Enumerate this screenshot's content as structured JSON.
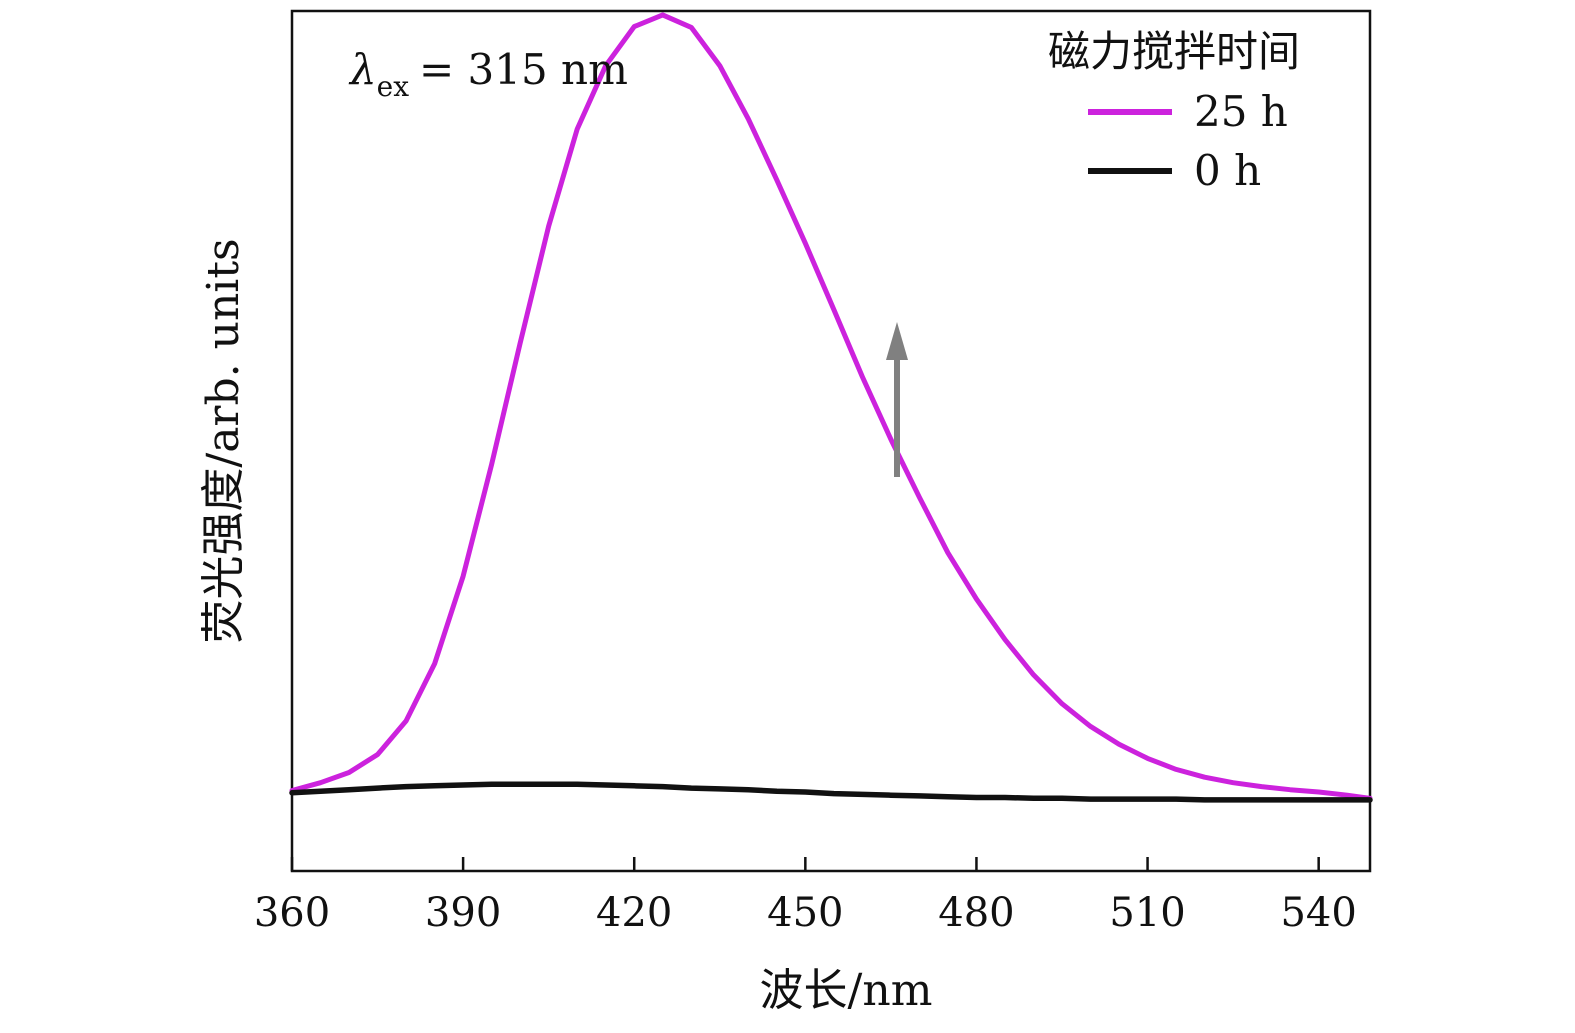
{
  "chart_data": {
    "type": "line",
    "xlabel": "波长/nm",
    "ylabel": "荧光强度/arb. units",
    "xlim": [
      360,
      549
    ],
    "ylim": [
      -0.1,
      1.0
    ],
    "x_ticks": [
      360,
      390,
      420,
      450,
      480,
      510,
      540
    ],
    "y_ticks": [],
    "grid": false,
    "annotation": {
      "lambda": "λ",
      "subscript": "ex",
      "text": "= 315 nm"
    },
    "legend": {
      "title": "磁力搅拌时间",
      "placement": "top-right"
    },
    "arrow": {
      "direction": "up",
      "color": "#808080"
    },
    "x": [
      360,
      365,
      370,
      375,
      380,
      385,
      390,
      395,
      400,
      405,
      410,
      415,
      420,
      425,
      430,
      435,
      440,
      445,
      450,
      455,
      460,
      465,
      470,
      475,
      480,
      485,
      490,
      495,
      500,
      505,
      510,
      515,
      520,
      525,
      530,
      535,
      540,
      545,
      549
    ],
    "series": [
      {
        "name": "25 h",
        "color": "#cc22dd",
        "values": [
          0.003,
          0.013,
          0.026,
          0.049,
          0.092,
          0.165,
          0.277,
          0.42,
          0.575,
          0.725,
          0.849,
          0.93,
          0.98,
          0.995,
          0.979,
          0.93,
          0.862,
          0.784,
          0.703,
          0.618,
          0.532,
          0.452,
          0.378,
          0.307,
          0.248,
          0.196,
          0.151,
          0.114,
          0.085,
          0.062,
          0.044,
          0.03,
          0.02,
          0.013,
          0.008,
          0.004,
          0.001,
          -0.003,
          -0.007
        ]
      },
      {
        "name": "0 h",
        "color": "#111111",
        "values": [
          0.0,
          0.002,
          0.004,
          0.006,
          0.008,
          0.009,
          0.01,
          0.011,
          0.011,
          0.011,
          0.011,
          0.01,
          0.009,
          0.008,
          0.006,
          0.005,
          0.004,
          0.002,
          0.001,
          -0.001,
          -0.002,
          -0.003,
          -0.004,
          -0.005,
          -0.006,
          -0.006,
          -0.007,
          -0.007,
          -0.008,
          -0.008,
          -0.008,
          -0.008,
          -0.009,
          -0.009,
          -0.009,
          -0.009,
          -0.009,
          -0.009,
          -0.009
        ]
      }
    ]
  }
}
